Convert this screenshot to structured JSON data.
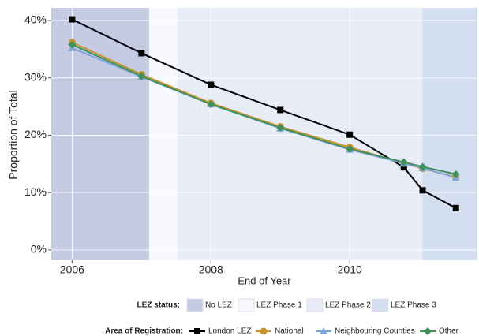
{
  "chart_data": {
    "type": "line",
    "y_label": "Proportion of Total",
    "x_label": "End of Year",
    "x": [
      2006,
      2007,
      2008,
      2009,
      2010,
      2010.78,
      2011.05,
      2011.53
    ],
    "xlim": [
      2005.7,
      2011.84
    ],
    "xticks": [
      2006,
      2008,
      2010
    ],
    "ylim": [
      -1.8,
      42.2
    ],
    "yticks": [
      {
        "value": 0,
        "label": "0%"
      },
      {
        "value": 10,
        "label": "10%"
      },
      {
        "value": 20,
        "label": "20%"
      },
      {
        "value": 30,
        "label": "30%"
      },
      {
        "value": 40,
        "label": "40%"
      }
    ],
    "grid": true,
    "bands_title": "LEZ status:",
    "bands": [
      {
        "name": "No LEZ",
        "color": "#c5cbe3",
        "start": 2005.7,
        "end": 2007.11
      },
      {
        "name": "LEZ Phase 1",
        "color": "#f7f9fe",
        "start": 2007.11,
        "end": 2007.52
      },
      {
        "name": "LEZ Phase 2",
        "color": "#e8ecf6",
        "start": 2007.52,
        "end": 2011.05
      },
      {
        "name": "LEZ Phase 3",
        "color": "#d3dff0",
        "start": 2011.05,
        "end": 2011.84
      }
    ],
    "legend_title": "Area of Registration:",
    "series": [
      {
        "name": "London LEZ",
        "color": "#000000",
        "marker": "square",
        "values": [
          40.2,
          34.3,
          28.8,
          24.4,
          20.1,
          14.4,
          10.4,
          7.3
        ]
      },
      {
        "name": "National",
        "color": "#c8952b",
        "marker": "circle",
        "values": [
          36.2,
          30.6,
          25.6,
          21.5,
          17.9,
          15.1,
          14.2,
          12.7
        ]
      },
      {
        "name": "Neighbouring Counties",
        "color": "#7fa6d8",
        "marker": "triangle",
        "values": [
          35.2,
          30.2,
          25.4,
          21.2,
          17.5,
          15.1,
          14.3,
          12.6
        ]
      },
      {
        "name": "Other",
        "color": "#3f8f5f",
        "marker": "diamond",
        "values": [
          35.8,
          30.3,
          25.4,
          21.3,
          17.6,
          15.3,
          14.5,
          13.2
        ]
      }
    ]
  }
}
